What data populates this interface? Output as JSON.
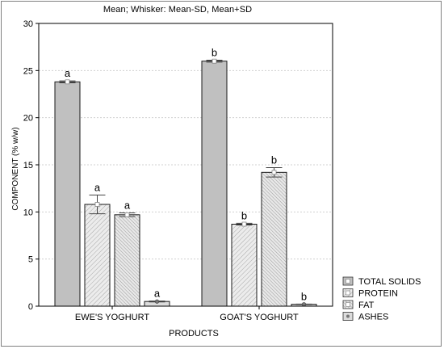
{
  "chart_data": {
    "type": "bar",
    "title": "Mean;  Whisker: Mean-SD, Mean+SD",
    "xlabel": "PRODUCTS",
    "ylabel": "COMPONENT (% w/w)",
    "ylim": [
      0,
      30
    ],
    "yticks": [
      "0",
      "5",
      "10",
      "15",
      "20",
      "25",
      "30"
    ],
    "categories": [
      "EWE'S YOGHURT",
      "GOAT'S YOGHURT"
    ],
    "grid": true,
    "legend_position": "bottom-right, outside plot",
    "series": [
      {
        "name": "TOTAL SOLIDS",
        "fill": "#c0c0c0",
        "pattern": "solid",
        "values": [
          23.8,
          26.0
        ],
        "sd": [
          0.1,
          0.1
        ],
        "letters": [
          "a",
          "b"
        ]
      },
      {
        "name": "PROTEIN",
        "fill": "#e6e6e6",
        "pattern": "hatch-fine",
        "values": [
          10.8,
          8.7
        ],
        "sd": [
          1.0,
          0.1
        ],
        "letters": [
          "a",
          "b"
        ]
      },
      {
        "name": "FAT",
        "fill": "#e6e6e6",
        "pattern": "hatch-dense",
        "values": [
          9.7,
          14.2
        ],
        "sd": [
          0.2,
          0.5
        ],
        "letters": [
          "a",
          "b"
        ]
      },
      {
        "name": "ASHES",
        "fill": "#dcdcdc",
        "pattern": "solid",
        "values": [
          0.5,
          0.2
        ],
        "sd": [
          0.05,
          0.03
        ],
        "letters": [
          "a",
          "b"
        ]
      }
    ]
  }
}
